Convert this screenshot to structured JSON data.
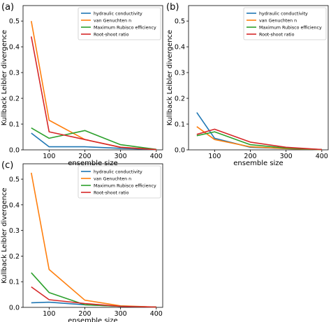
{
  "colors": {
    "hydraulic": "#1f77b4",
    "vangenuchten": "#ff7f0e",
    "rubisco": "#2ca02c",
    "rootshoot": "#d62728"
  },
  "chart_data": [
    {
      "panel_label": "(a)",
      "type": "line",
      "xlabel": "ensemble size",
      "ylabel": "Kullback Leibler divergence",
      "x_ticks": [
        "100",
        "200",
        "300",
        "400"
      ],
      "y_ticks": [
        "0.0",
        "0.1",
        "0.2",
        "0.3",
        "0.4",
        "0.5"
      ],
      "xlim": [
        27,
        418
      ],
      "ylim": [
        0,
        0.56
      ],
      "x": [
        50,
        100,
        200,
        300,
        400
      ],
      "legend_position": "top-right",
      "series": [
        {
          "name": "hydraulic conductivity",
          "color_key": "hydraulic",
          "values": [
            0.065,
            0.012,
            0.012,
            0.006,
            0.001
          ]
        },
        {
          "name": "van Genuchten n",
          "color_key": "vangenuchten",
          "values": [
            0.5,
            0.115,
            0.04,
            0.01,
            0.001
          ]
        },
        {
          "name": "Maximum Rubisco efficiency",
          "color_key": "rubisco",
          "values": [
            0.085,
            0.045,
            0.075,
            0.02,
            0.002
          ]
        },
        {
          "name": "Root-shoot ratio",
          "color_key": "rootshoot",
          "values": [
            0.44,
            0.07,
            0.04,
            0.01,
            0.001
          ]
        }
      ]
    },
    {
      "panel_label": "(b)",
      "type": "line",
      "xlabel": "ensemble size",
      "ylabel": "Kullback Leibler divergence",
      "x_ticks": [
        "100",
        "200",
        "300",
        "400"
      ],
      "y_ticks": [
        "0.0",
        "0.1",
        "0.2",
        "0.3",
        "0.4",
        "0.5"
      ],
      "xlim": [
        27,
        418
      ],
      "ylim": [
        0,
        0.56
      ],
      "x": [
        50,
        100,
        200,
        300,
        400
      ],
      "legend_position": "top-right",
      "series": [
        {
          "name": "hydraulic conductivity",
          "color_key": "hydraulic",
          "values": [
            0.145,
            0.045,
            0.01,
            0.005,
            0.001
          ]
        },
        {
          "name": "van Genuchten n",
          "color_key": "vangenuchten",
          "values": [
            0.09,
            0.04,
            0.012,
            0.005,
            0.001
          ]
        },
        {
          "name": "Maximum Rubisco efficiency",
          "color_key": "rubisco",
          "values": [
            0.055,
            0.07,
            0.02,
            0.007,
            0.001
          ]
        },
        {
          "name": "Root-shoot ratio",
          "color_key": "rootshoot",
          "values": [
            0.06,
            0.08,
            0.03,
            0.01,
            0.001
          ]
        }
      ]
    },
    {
      "panel_label": "(c)",
      "type": "line",
      "xlabel": "ensemble size",
      "ylabel": "Kullback Leibler divergence",
      "x_ticks": [
        "100",
        "200",
        "300",
        "400"
      ],
      "y_ticks": [
        "0.0",
        "0.1",
        "0.2",
        "0.3",
        "0.4",
        "0.5"
      ],
      "xlim": [
        27,
        418
      ],
      "ylim": [
        0,
        0.56
      ],
      "x": [
        50,
        100,
        200,
        300,
        400
      ],
      "legend_position": "top-right",
      "series": [
        {
          "name": "hydraulic conductivity",
          "color_key": "hydraulic",
          "values": [
            0.018,
            0.02,
            0.01,
            0.004,
            0.001
          ]
        },
        {
          "name": "van Genuchten n",
          "color_key": "vangenuchten",
          "values": [
            0.525,
            0.148,
            0.028,
            0.006,
            0.001
          ]
        },
        {
          "name": "Maximum Rubisco efficiency",
          "color_key": "rubisco",
          "values": [
            0.135,
            0.058,
            0.01,
            0.004,
            0.001
          ]
        },
        {
          "name": "Root-shoot ratio",
          "color_key": "rootshoot",
          "values": [
            0.08,
            0.03,
            0.015,
            0.004,
            0.001
          ]
        }
      ]
    }
  ]
}
